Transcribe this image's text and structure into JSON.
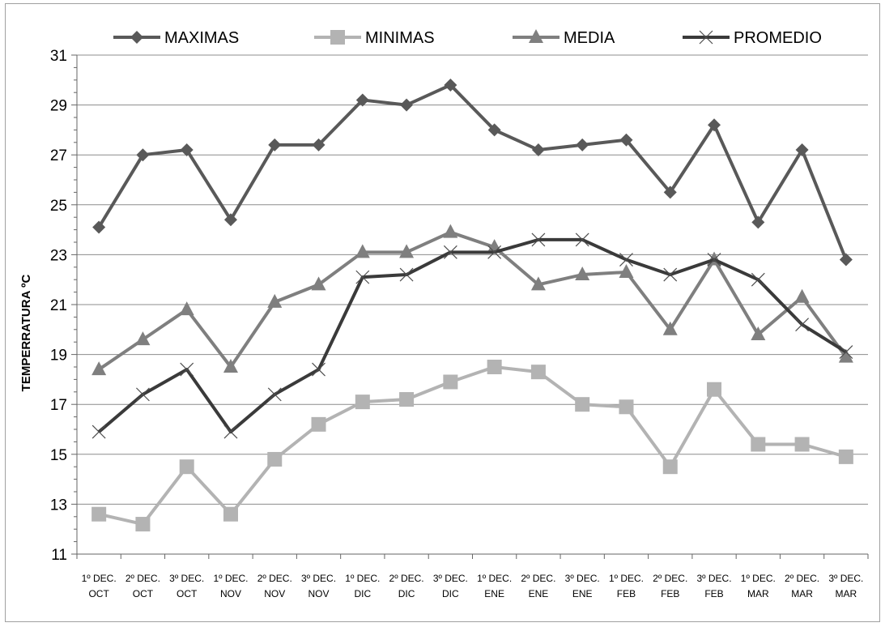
{
  "chart_data": {
    "type": "line",
    "title": "",
    "xlabel": "",
    "ylabel": "TEMPERRATURA ºC",
    "ylim": [
      11,
      31
    ],
    "yticks": [
      11,
      13,
      15,
      17,
      19,
      21,
      23,
      25,
      27,
      29,
      31
    ],
    "grid": "horizontal",
    "legend_position": "top",
    "categories": [
      [
        "1º DEC.",
        "OCT"
      ],
      [
        "2º DEC.",
        "OCT"
      ],
      [
        "3º DEC.",
        "OCT"
      ],
      [
        "1º DEC.",
        "NOV"
      ],
      [
        "2º DEC.",
        "NOV"
      ],
      [
        "3º DEC.",
        "NOV"
      ],
      [
        "1º DEC.",
        "DIC"
      ],
      [
        "2º DEC.",
        "DIC"
      ],
      [
        "3º DEC.",
        "DIC"
      ],
      [
        "1º DEC.",
        "ENE"
      ],
      [
        "2º DEC.",
        "ENE"
      ],
      [
        "3º DEC.",
        "ENE"
      ],
      [
        "1º DEC.",
        "FEB"
      ],
      [
        "2º DEC.",
        "FEB"
      ],
      [
        "3º DEC.",
        "FEB"
      ],
      [
        "1º DEC.",
        "MAR"
      ],
      [
        "2º DEC.",
        "MAR"
      ],
      [
        "3º DEC.",
        "MAR"
      ]
    ],
    "series": [
      {
        "name": "MAXIMAS",
        "color": "#595959",
        "marker": "diamond",
        "values": [
          24.1,
          27.0,
          27.2,
          24.4,
          27.4,
          27.4,
          29.2,
          29.0,
          29.8,
          28.0,
          27.2,
          27.4,
          27.6,
          25.5,
          28.2,
          24.3,
          27.2,
          22.8
        ]
      },
      {
        "name": "MINIMAS",
        "color": "#b3b3b3",
        "marker": "square",
        "values": [
          12.6,
          12.2,
          14.5,
          12.6,
          14.8,
          16.2,
          17.1,
          17.2,
          17.9,
          18.5,
          18.3,
          17.0,
          16.9,
          14.5,
          17.6,
          15.4,
          15.4,
          14.9
        ]
      },
      {
        "name": "MEDIA",
        "color": "#7f7f7f",
        "marker": "triangle",
        "values": [
          18.4,
          19.6,
          20.8,
          18.5,
          21.1,
          21.8,
          23.1,
          23.1,
          23.9,
          23.3,
          21.8,
          22.2,
          22.3,
          20.0,
          22.8,
          19.8,
          21.3,
          18.9
        ]
      },
      {
        "name": "PROMEDIO",
        "color": "#3a3a3a",
        "marker": "x",
        "values": [
          15.9,
          17.4,
          18.4,
          15.9,
          17.4,
          18.4,
          22.1,
          22.2,
          23.1,
          23.1,
          23.6,
          23.6,
          22.8,
          22.2,
          22.8,
          22.0,
          20.2,
          19.1
        ]
      }
    ]
  }
}
